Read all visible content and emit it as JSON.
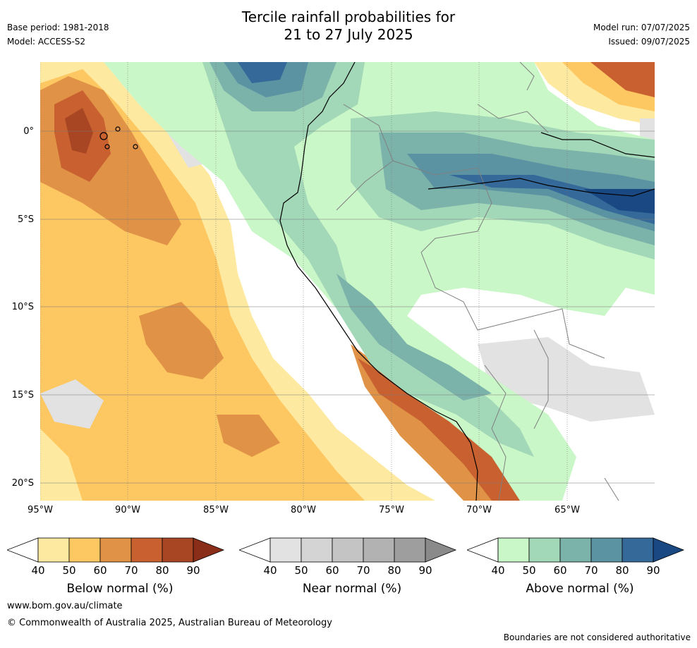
{
  "header": {
    "title_line1": "Tercile rainfall probabilities for",
    "title_line2": "21 to 27 July 2025",
    "base_period": "Base period: 1981-2018",
    "model": "Model: ACCESS-S2",
    "model_run": "Model run: 07/07/2025",
    "issued": "Issued: 09/07/2025"
  },
  "map": {
    "lat_labels": [
      "0°",
      "5°S",
      "10°S",
      "15°S",
      "20°S"
    ],
    "lon_labels": [
      "95°W",
      "90°W",
      "85°W",
      "80°W",
      "75°W",
      "70°W",
      "65°W"
    ],
    "lat_values": [
      0,
      -5,
      -10,
      -15,
      -20
    ],
    "lon_values": [
      -95,
      -90,
      -85,
      -80,
      -75,
      -70,
      -65
    ],
    "extent": {
      "lon_min": -95,
      "lon_max": -60,
      "lat_min": -21,
      "lat_max": 4
    }
  },
  "colors": {
    "below": [
      "#fdeaa0",
      "#fdc761",
      "#e09247",
      "#c8612f",
      "#a84624",
      "#8a2e1a"
    ],
    "near": [
      "#e2e2e2",
      "#d4d4d4",
      "#c4c4c4",
      "#b2b2b2",
      "#9e9e9e",
      "#8a8a8a"
    ],
    "above": [
      "#c9f7c7",
      "#a2d7b8",
      "#7bb2aa",
      "#5b93a2",
      "#35699a",
      "#1a4883"
    ],
    "land_border": "#808080",
    "coast": "#000000"
  },
  "colorbars": [
    {
      "title": "Below normal (%)",
      "ticks": [
        "40",
        "50",
        "60",
        "70",
        "80",
        "90"
      ]
    },
    {
      "title": "Near normal (%)",
      "ticks": [
        "40",
        "50",
        "60",
        "70",
        "80",
        "90"
      ]
    },
    {
      "title": "Above normal (%)",
      "ticks": [
        "40",
        "50",
        "60",
        "70",
        "80",
        "90"
      ]
    }
  ],
  "footer": {
    "website": "www.bom.gov.au/climate",
    "copyright": "© Commonwealth of Australia 2025, Australian Bureau of Meteorology",
    "disclaimer": "Boundaries are not considered authoritative"
  }
}
